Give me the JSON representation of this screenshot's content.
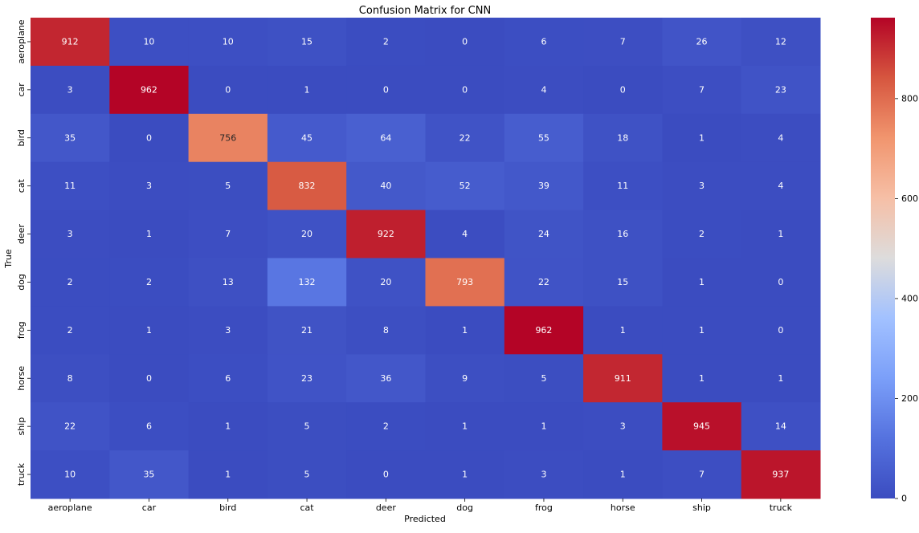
{
  "chart_data": {
    "type": "heatmap",
    "title": "Confusion Matrix for CNN",
    "xlabel": "Predicted",
    "ylabel": "True",
    "x_categories": [
      "aeroplane",
      "car",
      "bird",
      "cat",
      "deer",
      "dog",
      "frog",
      "horse",
      "ship",
      "truck"
    ],
    "y_categories": [
      "aeroplane",
      "car",
      "bird",
      "cat",
      "deer",
      "dog",
      "frog",
      "horse",
      "ship",
      "truck"
    ],
    "values": [
      [
        912,
        10,
        10,
        15,
        2,
        0,
        6,
        7,
        26,
        12
      ],
      [
        3,
        962,
        0,
        1,
        0,
        0,
        4,
        0,
        7,
        23
      ],
      [
        35,
        0,
        756,
        45,
        64,
        22,
        55,
        18,
        1,
        4
      ],
      [
        11,
        3,
        5,
        832,
        40,
        52,
        39,
        11,
        3,
        4
      ],
      [
        3,
        1,
        7,
        20,
        922,
        4,
        24,
        16,
        2,
        1
      ],
      [
        2,
        2,
        13,
        132,
        20,
        793,
        22,
        15,
        1,
        0
      ],
      [
        2,
        1,
        3,
        21,
        8,
        1,
        962,
        1,
        1,
        0
      ],
      [
        8,
        0,
        6,
        23,
        36,
        9,
        5,
        911,
        1,
        1
      ],
      [
        22,
        6,
        1,
        5,
        2,
        1,
        1,
        3,
        945,
        14
      ],
      [
        10,
        35,
        1,
        5,
        0,
        1,
        3,
        1,
        7,
        937
      ]
    ],
    "colormap": "coolwarm",
    "vmin": 0,
    "vmax": 962,
    "colorbar": {
      "ticks": [
        0,
        200,
        400,
        600,
        800
      ],
      "tick_labels": [
        "0",
        "200",
        "400",
        "600",
        "800"
      ]
    },
    "annotations": true,
    "grid": false
  }
}
